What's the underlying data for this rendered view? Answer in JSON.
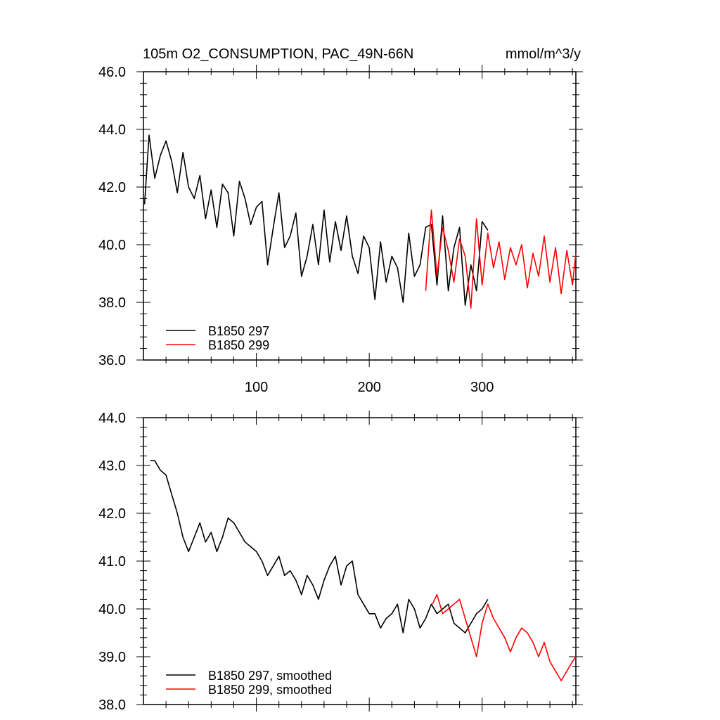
{
  "header": {
    "title": "105m O2_CONSUMPTION, PAC_49N-66N",
    "units": "mmol/m^3/y"
  },
  "chart_data": [
    {
      "type": "line",
      "panel": "top",
      "xlim": [
        0,
        383
      ],
      "ylim": [
        36.0,
        46.0
      ],
      "x_tick_values": [
        100,
        200,
        300
      ],
      "x_tick_labels": [
        "100",
        "200",
        "300"
      ],
      "y_tick_values": [
        36,
        38,
        40,
        42,
        44,
        46
      ],
      "y_tick_labels": [
        "36.0",
        "38.0",
        "40.0",
        "42.0",
        "44.0",
        "46.0"
      ],
      "grid": false,
      "legend_position": "bottom-left",
      "series": [
        {
          "name": "B1850 297",
          "color": "#000000",
          "x": [
            1,
            5,
            10,
            15,
            20,
            25,
            30,
            35,
            40,
            45,
            50,
            55,
            60,
            65,
            70,
            75,
            80,
            85,
            90,
            95,
            100,
            105,
            110,
            115,
            120,
            125,
            130,
            135,
            140,
            145,
            150,
            155,
            160,
            165,
            170,
            175,
            180,
            185,
            190,
            195,
            200,
            205,
            210,
            215,
            220,
            225,
            230,
            235,
            240,
            245,
            250,
            255,
            260,
            265,
            270,
            275,
            280,
            285,
            290,
            295,
            300,
            305
          ],
          "values": [
            41.4,
            43.8,
            42.3,
            43.1,
            43.6,
            42.9,
            41.8,
            43.2,
            42.0,
            41.6,
            42.4,
            40.9,
            41.9,
            40.6,
            42.1,
            41.8,
            40.3,
            42.2,
            41.6,
            40.7,
            41.3,
            41.5,
            39.3,
            40.6,
            41.8,
            39.9,
            40.3,
            41.1,
            38.9,
            39.6,
            40.7,
            39.3,
            41.2,
            39.4,
            40.8,
            39.8,
            41.0,
            39.6,
            39.0,
            40.3,
            39.9,
            38.1,
            40.1,
            38.7,
            39.6,
            39.2,
            38.0,
            40.4,
            38.9,
            39.3,
            40.6,
            40.7,
            38.6,
            41.0,
            38.4,
            39.9,
            40.6,
            37.9,
            39.3,
            38.4,
            40.8,
            40.5
          ]
        },
        {
          "name": "B1850 299",
          "color": "#ff0000",
          "x": [
            250,
            255,
            260,
            265,
            270,
            275,
            280,
            285,
            290,
            295,
            300,
            305,
            310,
            315,
            320,
            325,
            330,
            335,
            340,
            345,
            350,
            355,
            360,
            365,
            370,
            375,
            380,
            383
          ],
          "values": [
            38.4,
            41.2,
            38.9,
            40.6,
            39.8,
            38.7,
            40.2,
            39.6,
            37.8,
            40.9,
            38.6,
            40.4,
            39.2,
            40.1,
            38.8,
            39.9,
            39.3,
            40.0,
            38.5,
            39.7,
            38.9,
            40.3,
            38.7,
            39.9,
            38.3,
            39.8,
            38.6,
            39.7
          ]
        }
      ]
    },
    {
      "type": "line",
      "panel": "bottom",
      "xlim": [
        0,
        383
      ],
      "ylim": [
        38.0,
        44.0
      ],
      "x_tick_values": [
        100,
        200,
        300
      ],
      "y_tick_values": [
        38,
        39,
        40,
        41,
        42,
        43,
        44
      ],
      "y_tick_labels": [
        "38.0",
        "39.0",
        "40.0",
        "41.0",
        "42.0",
        "43.0",
        "44.0"
      ],
      "grid": false,
      "legend_position": "bottom-left",
      "series": [
        {
          "name": "B1850 297, smoothed",
          "color": "#000000",
          "x": [
            6,
            10,
            15,
            20,
            25,
            30,
            35,
            40,
            45,
            50,
            55,
            60,
            65,
            70,
            75,
            80,
            85,
            90,
            95,
            100,
            105,
            110,
            115,
            120,
            125,
            130,
            135,
            140,
            145,
            150,
            155,
            160,
            165,
            170,
            175,
            180,
            185,
            190,
            195,
            200,
            205,
            210,
            215,
            220,
            225,
            230,
            235,
            240,
            245,
            250,
            255,
            260,
            265,
            270,
            275,
            280,
            285,
            290,
            295,
            300,
            305
          ],
          "values": [
            43.1,
            43.1,
            42.9,
            42.8,
            42.4,
            42.0,
            41.5,
            41.2,
            41.5,
            41.8,
            41.4,
            41.6,
            41.2,
            41.5,
            41.9,
            41.8,
            41.6,
            41.4,
            41.3,
            41.2,
            41.0,
            40.7,
            40.9,
            41.1,
            40.7,
            40.8,
            40.6,
            40.3,
            40.7,
            40.5,
            40.2,
            40.6,
            40.9,
            41.1,
            40.5,
            40.9,
            41.0,
            40.3,
            40.1,
            39.9,
            39.9,
            39.6,
            39.8,
            39.9,
            40.1,
            39.5,
            40.2,
            40.0,
            39.6,
            39.8,
            40.1,
            39.9,
            40.0,
            40.1,
            39.7,
            39.6,
            39.5,
            39.7,
            39.9,
            40.0,
            40.2
          ]
        },
        {
          "name": "B1850 299, smoothed",
          "color": "#ff0000",
          "x": [
            256,
            260,
            265,
            270,
            275,
            280,
            285,
            290,
            295,
            300,
            305,
            310,
            315,
            320,
            325,
            330,
            335,
            340,
            345,
            350,
            355,
            360,
            365,
            370,
            375,
            380,
            383
          ],
          "values": [
            40.1,
            40.3,
            39.9,
            40.0,
            40.1,
            40.2,
            39.8,
            39.4,
            39.0,
            39.7,
            40.1,
            39.8,
            39.6,
            39.4,
            39.1,
            39.4,
            39.6,
            39.5,
            39.3,
            39.0,
            39.3,
            38.9,
            38.7,
            38.5,
            38.7,
            38.9,
            39.0
          ]
        }
      ]
    }
  ]
}
